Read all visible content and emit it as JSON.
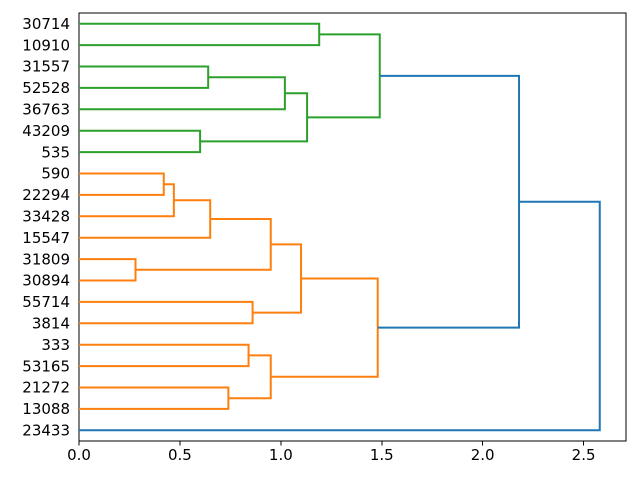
{
  "figure": {
    "kind": "matplotlib-dendrogram",
    "background": "#ffffff"
  },
  "chart_data": {
    "type": "dendrogram",
    "orientation": "labels-left-root-right",
    "title": "",
    "xlabel": "",
    "ylabel": "",
    "grid": false,
    "palette": {
      "green": "#2ca02c",
      "orange": "#ff7f0e",
      "blue": "#1f77b4",
      "axis": "#000000"
    },
    "leaves": [
      {
        "label": "30714",
        "cluster": "green"
      },
      {
        "label": "10910",
        "cluster": "green"
      },
      {
        "label": "31557",
        "cluster": "green"
      },
      {
        "label": "52528",
        "cluster": "green"
      },
      {
        "label": "36763",
        "cluster": "green"
      },
      {
        "label": "43209",
        "cluster": "green"
      },
      {
        "label": "535",
        "cluster": "green"
      },
      {
        "label": "590",
        "cluster": "orange"
      },
      {
        "label": "22294",
        "cluster": "orange"
      },
      {
        "label": "33428",
        "cluster": "orange"
      },
      {
        "label": "15547",
        "cluster": "orange"
      },
      {
        "label": "31809",
        "cluster": "orange"
      },
      {
        "label": "30894",
        "cluster": "orange"
      },
      {
        "label": "55714",
        "cluster": "orange"
      },
      {
        "label": "3814",
        "cluster": "orange"
      },
      {
        "label": "333",
        "cluster": "orange"
      },
      {
        "label": "53165",
        "cluster": "orange"
      },
      {
        "label": "21272",
        "cluster": "orange"
      },
      {
        "label": "13088",
        "cluster": "orange"
      },
      {
        "label": "23433",
        "cluster": "blue"
      }
    ],
    "links": [
      {
        "id": "G1",
        "a": "leaf:31557",
        "b": "leaf:52528",
        "distance": 0.64,
        "color": "green"
      },
      {
        "id": "G2",
        "a": "leaf:43209",
        "b": "leaf:535",
        "distance": 0.6,
        "color": "green"
      },
      {
        "id": "G3",
        "a": "node:G1",
        "b": "leaf:36763",
        "distance": 1.02,
        "color": "green"
      },
      {
        "id": "G4",
        "a": "node:G3",
        "b": "node:G2",
        "distance": 1.13,
        "color": "green"
      },
      {
        "id": "G5",
        "a": "leaf:30714",
        "b": "leaf:10910",
        "distance": 1.19,
        "color": "green"
      },
      {
        "id": "G6",
        "a": "node:G5",
        "b": "node:G4",
        "distance": 1.49,
        "color": "green"
      },
      {
        "id": "O1",
        "a": "leaf:590",
        "b": "leaf:22294",
        "distance": 0.42,
        "color": "orange"
      },
      {
        "id": "O2",
        "a": "node:O1",
        "b": "leaf:33428",
        "distance": 0.47,
        "color": "orange"
      },
      {
        "id": "O3",
        "a": "node:O2",
        "b": "leaf:15547",
        "distance": 0.65,
        "color": "orange"
      },
      {
        "id": "O4",
        "a": "leaf:31809",
        "b": "leaf:30894",
        "distance": 0.28,
        "color": "orange"
      },
      {
        "id": "O5",
        "a": "node:O3",
        "b": "node:O4",
        "distance": 0.95,
        "color": "orange"
      },
      {
        "id": "O6",
        "a": "leaf:55714",
        "b": "leaf:3814",
        "distance": 0.86,
        "color": "orange"
      },
      {
        "id": "O7",
        "a": "node:O5",
        "b": "node:O6",
        "distance": 1.1,
        "color": "orange"
      },
      {
        "id": "O8",
        "a": "leaf:333",
        "b": "leaf:53165",
        "distance": 0.84,
        "color": "orange"
      },
      {
        "id": "O9",
        "a": "leaf:21272",
        "b": "leaf:13088",
        "distance": 0.74,
        "color": "orange"
      },
      {
        "id": "O10",
        "a": "node:O8",
        "b": "node:O9",
        "distance": 0.95,
        "color": "orange"
      },
      {
        "id": "O11",
        "a": "node:O7",
        "b": "node:O10",
        "distance": 1.48,
        "color": "orange"
      },
      {
        "id": "B1",
        "a": "node:G6",
        "b": "node:O11",
        "distance": 2.18,
        "color": "blue"
      },
      {
        "id": "B2",
        "a": "node:B1",
        "b": "leaf:23433",
        "distance": 2.58,
        "color": "blue"
      }
    ],
    "x_axis": {
      "tick_labels": [
        "0.0",
        "0.5",
        "1.0",
        "1.5",
        "2.0",
        "2.5"
      ],
      "tick_values": [
        0.0,
        0.5,
        1.0,
        1.5,
        2.0,
        2.5
      ],
      "range": [
        0,
        2.71
      ]
    }
  }
}
